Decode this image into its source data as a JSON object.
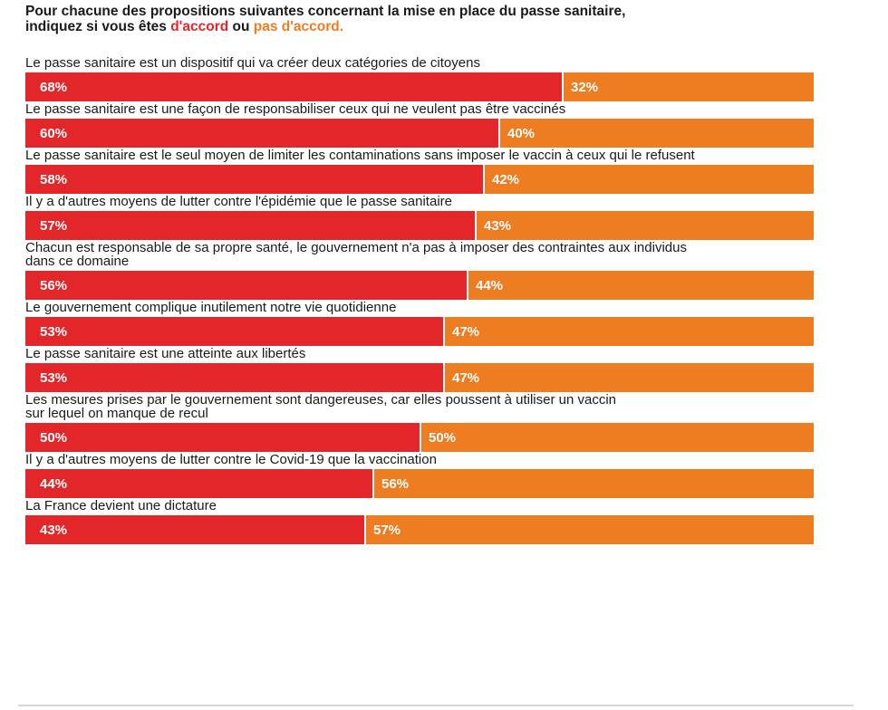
{
  "title": {
    "line1": "Pour chacune des propositions suivantes concernant la mise en place du passe sanitaire,",
    "line2_prefix": "indiquez si vous êtes ",
    "agree_word": "d'accord",
    "connector": " ou ",
    "disagree_word": "pas d'accord."
  },
  "colors": {
    "agree": "#e3262a",
    "disagree": "#ee7d22"
  },
  "chart_data": {
    "type": "bar",
    "orientation": "horizontal",
    "stacked": true,
    "xlim": [
      0,
      100
    ],
    "series": [
      {
        "name": "d'accord"
      },
      {
        "name": "pas d'accord."
      }
    ],
    "rows": [
      {
        "label": "Le passe sanitaire est un dispositif qui va créer deux catégories de citoyens",
        "agree": 68,
        "disagree": 32,
        "agree_label": "68%",
        "disagree_label": "32%"
      },
      {
        "label": "Le passe sanitaire est une façon de responsabiliser ceux qui ne veulent pas être vaccinés",
        "agree": 60,
        "disagree": 40,
        "agree_label": "60%",
        "disagree_label": "40%"
      },
      {
        "label": "Le passe sanitaire est le seul moyen de limiter les contaminations sans imposer le vaccin à ceux qui le refusent",
        "agree": 58,
        "disagree": 42,
        "agree_label": "58%",
        "disagree_label": "42%"
      },
      {
        "label": "Il y a d'autres moyens de lutter contre l'épidémie que le passe sanitaire",
        "agree": 57,
        "disagree": 43,
        "agree_label": "57%",
        "disagree_label": "43%"
      },
      {
        "label": "Chacun est responsable de sa propre santé, le gouvernement n'a pas à imposer des contraintes aux individus\ndans ce domaine",
        "agree": 56,
        "disagree": 44,
        "agree_label": "56%",
        "disagree_label": "44%"
      },
      {
        "label": "Le gouvernement complique inutilement notre vie quotidienne",
        "agree": 53,
        "disagree": 47,
        "agree_label": "53%",
        "disagree_label": "47%"
      },
      {
        "label": "Le passe sanitaire est une atteinte aux libertés",
        "agree": 53,
        "disagree": 47,
        "agree_label": "53%",
        "disagree_label": "47%"
      },
      {
        "label": "Les mesures prises par le gouvernement sont dangereuses, car elles poussent à utiliser un vaccin\nsur lequel on manque de recul",
        "agree": 50,
        "disagree": 50,
        "agree_label": "50%",
        "disagree_label": "50%"
      },
      {
        "label": "Il y a d'autres moyens de lutter contre le Covid-19 que la vaccination",
        "agree": 44,
        "disagree": 56,
        "agree_label": "44%",
        "disagree_label": "56%"
      },
      {
        "label": "La France devient une dictature",
        "agree": 43,
        "disagree": 57,
        "agree_label": "43%",
        "disagree_label": "57%"
      }
    ]
  }
}
